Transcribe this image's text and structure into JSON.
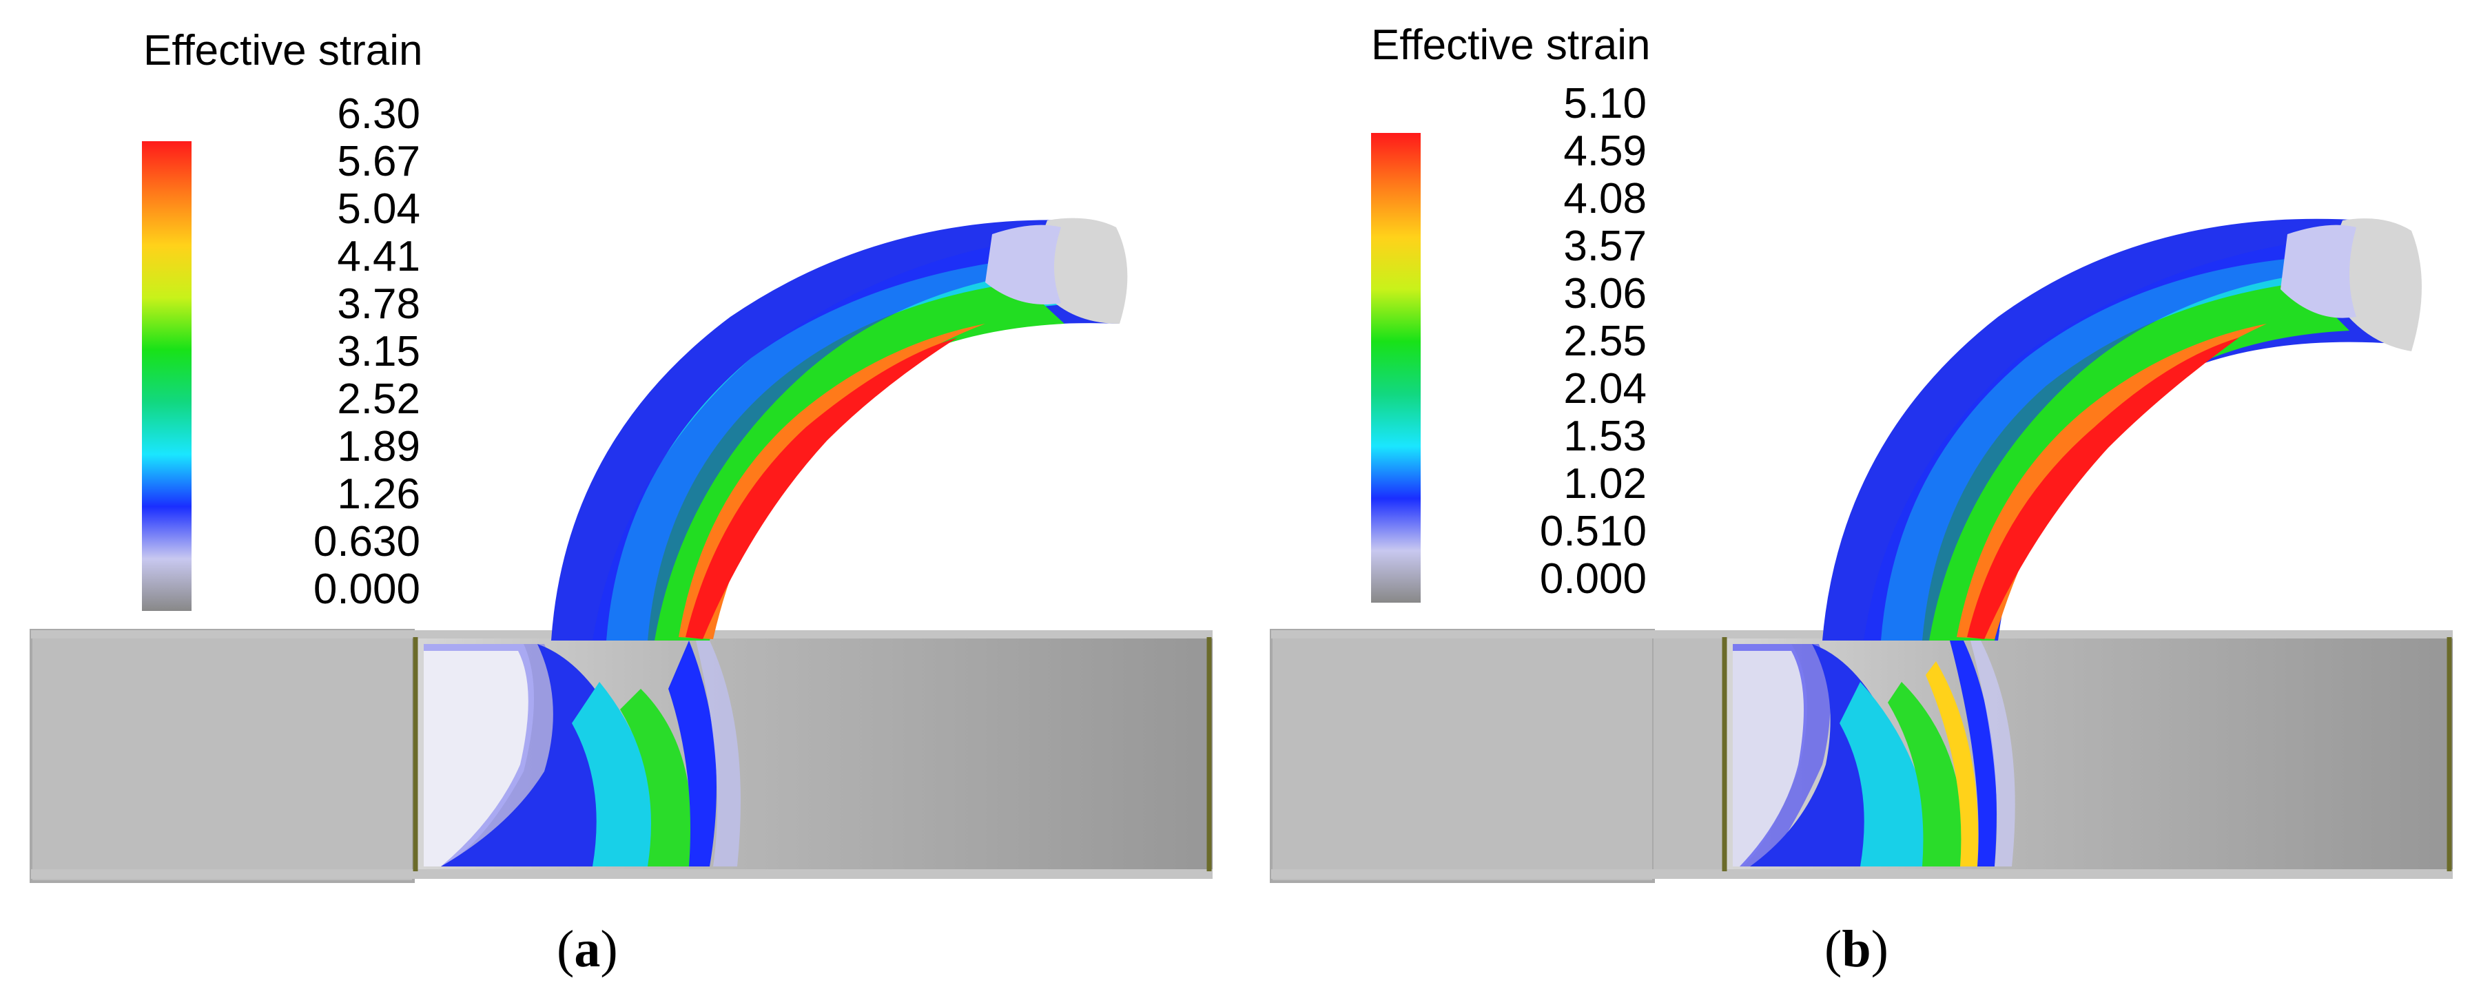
{
  "panels": [
    {
      "caption_open": "(",
      "caption_letter": "a",
      "caption_close": ")",
      "legend_title": "Effective strain",
      "legend_values": [
        "6.30",
        "5.67",
        "5.04",
        "4.41",
        "3.78",
        "3.15",
        "2.52",
        "1.89",
        "1.26",
        "0.630",
        "0.000"
      ]
    },
    {
      "caption_open": "(",
      "caption_letter": "b",
      "caption_close": ")",
      "legend_title": "Effective strain",
      "legend_values": [
        "5.10",
        "4.59",
        "4.08",
        "3.57",
        "3.06",
        "2.55",
        "2.04",
        "1.53",
        "1.02",
        "0.510",
        "0.000"
      ]
    }
  ],
  "colors": {
    "legend_gradient": [
      "#ff1a1a",
      "#ff7a1a",
      "#ffd21a",
      "#c8f21a",
      "#18e218",
      "#12d880",
      "#1ae6ff",
      "#1a2eff",
      "#c8c8f0",
      "#888888"
    ],
    "container": "#bdbdbd",
    "chamber": "#9e9e9e",
    "die_edge": "#6b6b2a"
  }
}
